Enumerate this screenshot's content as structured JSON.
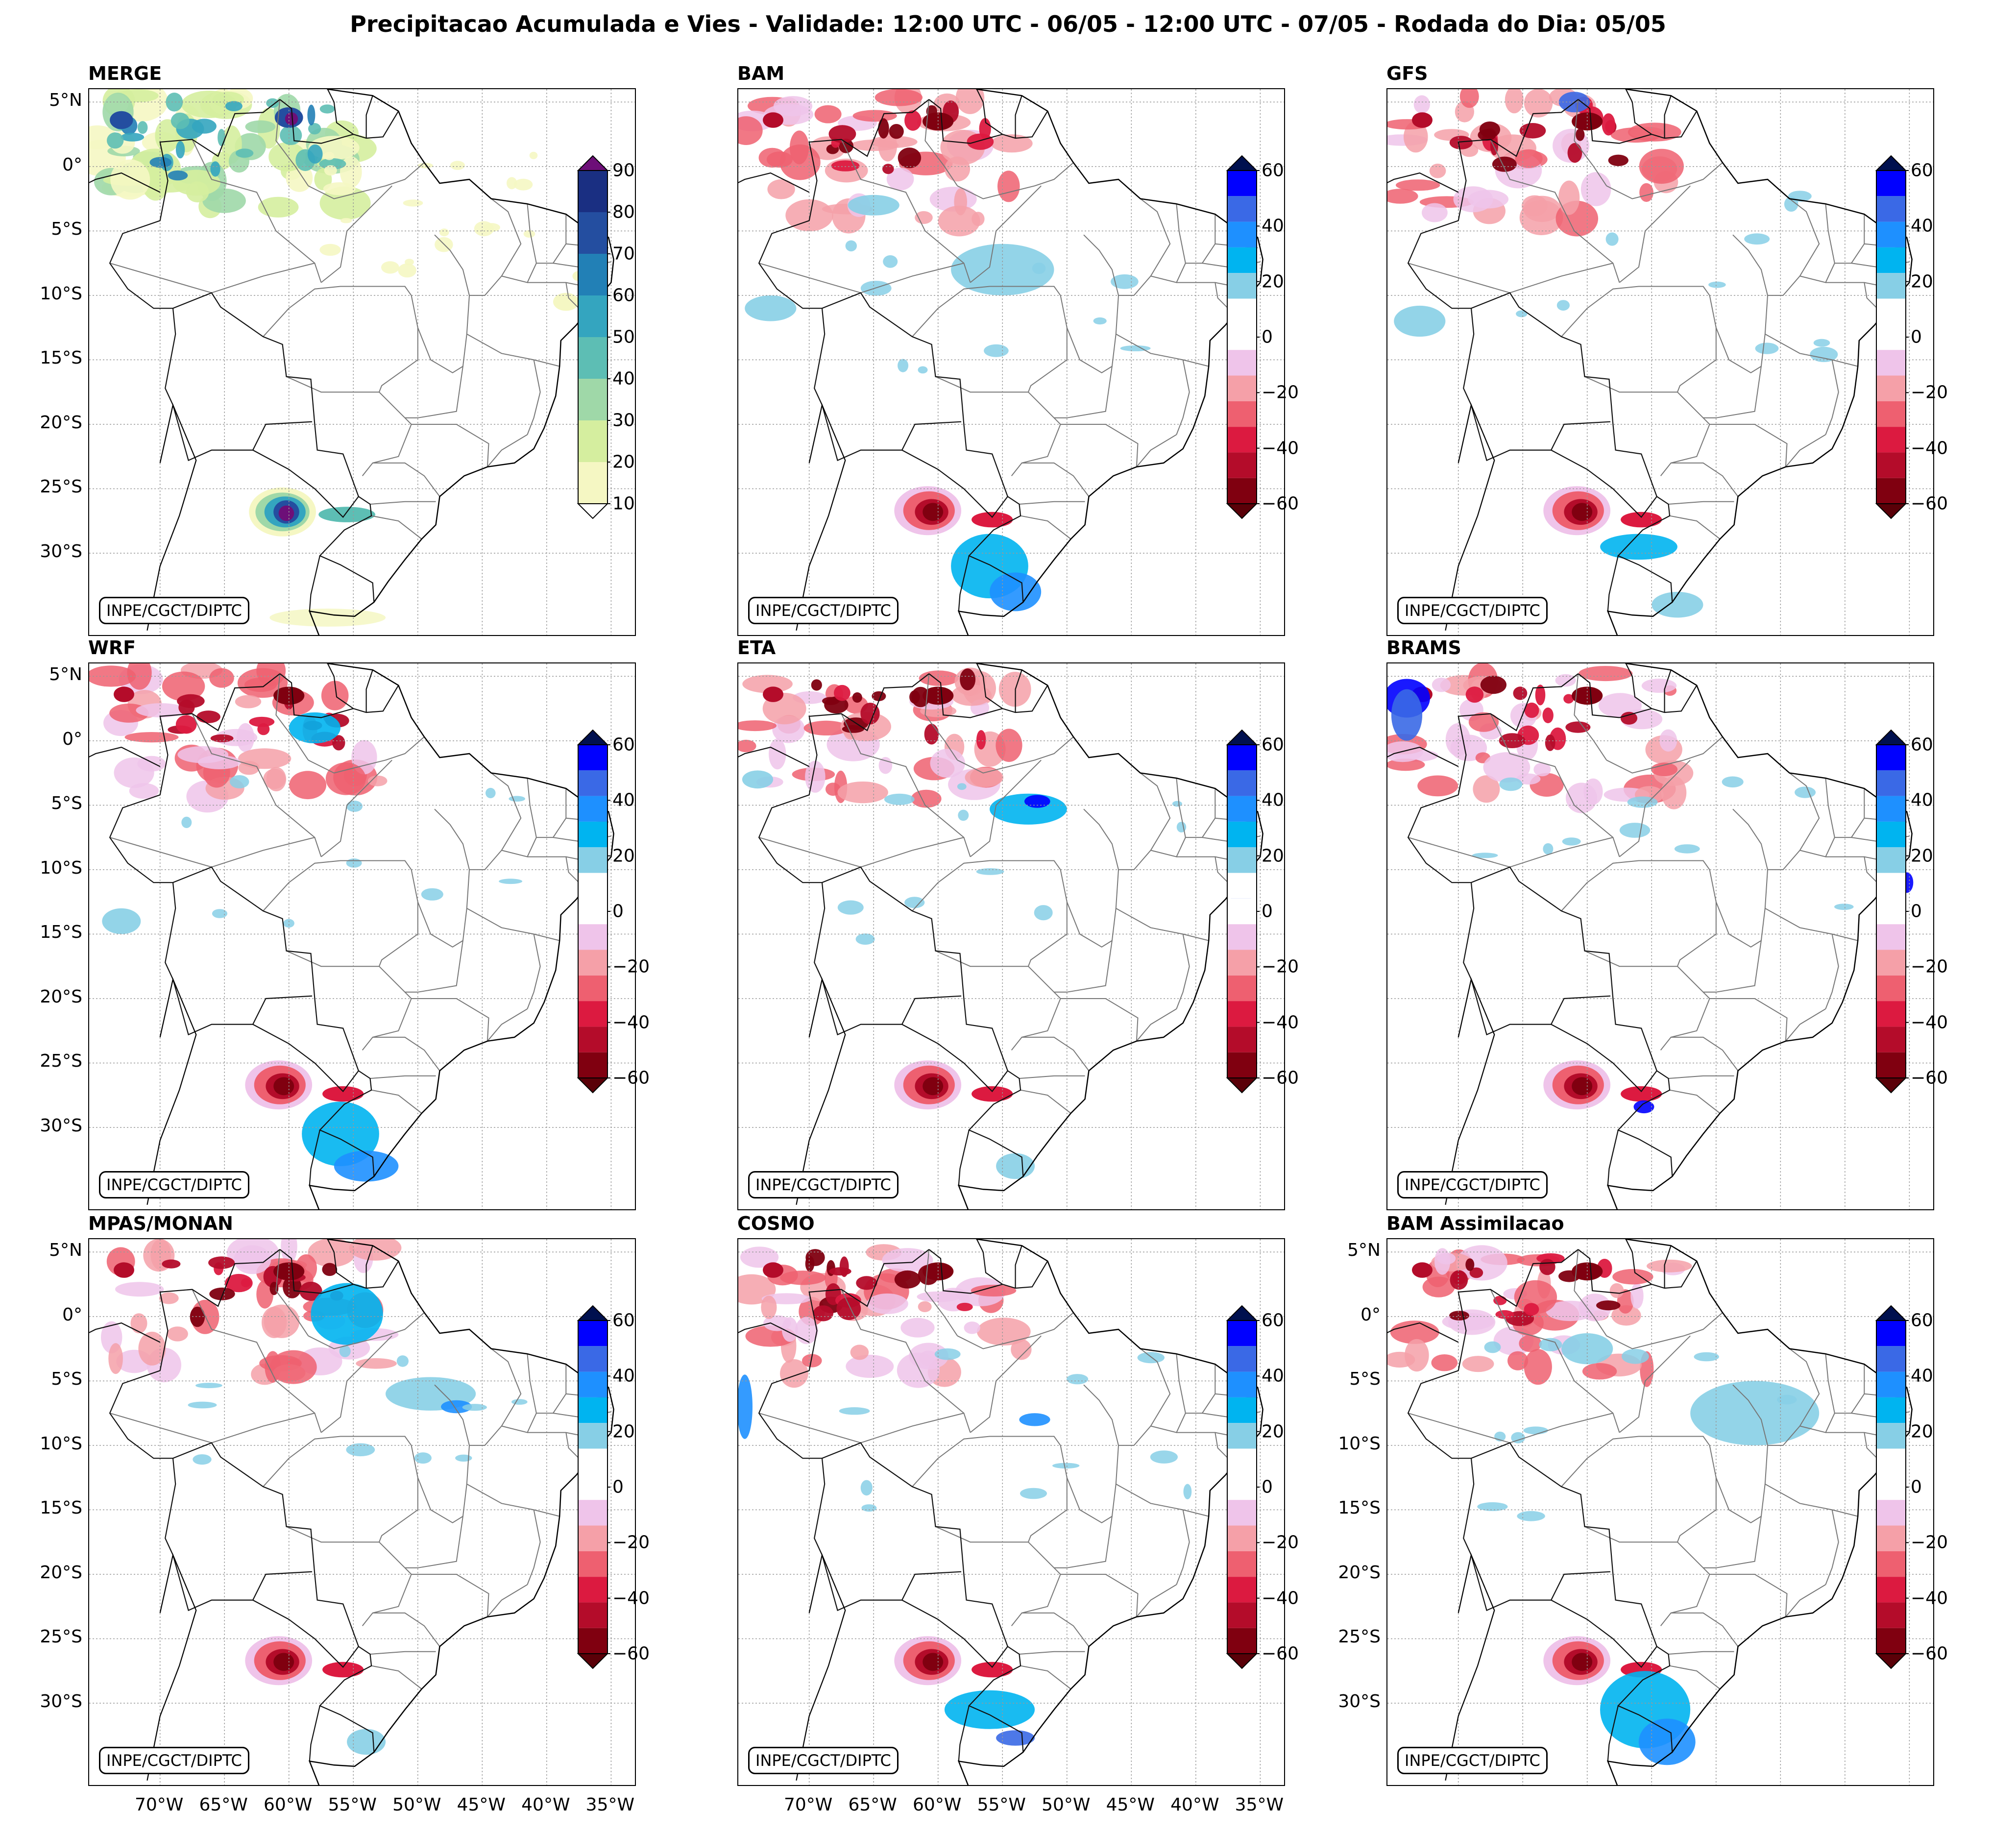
{
  "title": "Precipitacao Acumulada e Vies - Validade: 12:00 UTC - 06/05 - 12:00 UTC - 07/05 - Rodada do Dia: 05/05",
  "credit": "INPE/CGCT/DIPTC",
  "lat_labels": [
    "5°N",
    "0°",
    "5°S",
    "10°S",
    "15°S",
    "20°S",
    "25°S",
    "30°S"
  ],
  "lon_labels": [
    "70°W",
    "65°W",
    "60°W",
    "55°W",
    "50°W",
    "45°W",
    "40°W",
    "35°W"
  ],
  "colorbars": {
    "precip": {
      "ticks": [
        "10",
        "20",
        "30",
        "40",
        "50",
        "60",
        "70",
        "80",
        "90"
      ],
      "values": [
        10,
        20,
        30,
        40,
        50,
        60,
        70,
        80,
        90
      ],
      "colors": [
        "#f5f7c3",
        "#d5ee9f",
        "#9fd8a8",
        "#5dbeb4",
        "#34a5bf",
        "#2280b6",
        "#244ea0",
        "#1a2f82",
        "#0e1a55"
      ],
      "over_color": "#6d0f78",
      "under_color": "#ffffff"
    },
    "bias": {
      "ticks": [
        "60",
        "40",
        "20",
        "0",
        "−20",
        "−40",
        "−60"
      ],
      "values": [
        60,
        40,
        20,
        0,
        -20,
        -40,
        -60
      ],
      "colors": [
        "#0000ff",
        "#3a69e6",
        "#1e90ff",
        "#00b4f0",
        "#87cfe6",
        "#ffffff",
        "#ffffff",
        "#efc4ea",
        "#f5a0a8",
        "#ee6070",
        "#dc1a40",
        "#b40c2a",
        "#800010"
      ],
      "over_color": "#00104f",
      "under_color": "#5a0008"
    }
  },
  "panels": [
    {
      "title": "MERGE",
      "kind": "precip",
      "show_lat": true,
      "show_lon": false
    },
    {
      "title": "BAM",
      "kind": "bias",
      "show_lat": false,
      "show_lon": false
    },
    {
      "title": "GFS",
      "kind": "bias",
      "show_lat": false,
      "show_lon": false
    },
    {
      "title": "WRF",
      "kind": "bias",
      "show_lat": true,
      "show_lon": false
    },
    {
      "title": "ETA",
      "kind": "bias",
      "show_lat": false,
      "show_lon": false
    },
    {
      "title": "BRAMS",
      "kind": "bias",
      "show_lat": false,
      "show_lon": false
    },
    {
      "title": "MPAS/MONAN",
      "kind": "bias",
      "show_lat": true,
      "show_lon": true
    },
    {
      "title": "COSMO",
      "kind": "bias",
      "show_lat": false,
      "show_lon": true
    },
    {
      "title": "BAM Assimilacao",
      "kind": "bias",
      "show_lat": true,
      "show_lon": false
    }
  ]
}
